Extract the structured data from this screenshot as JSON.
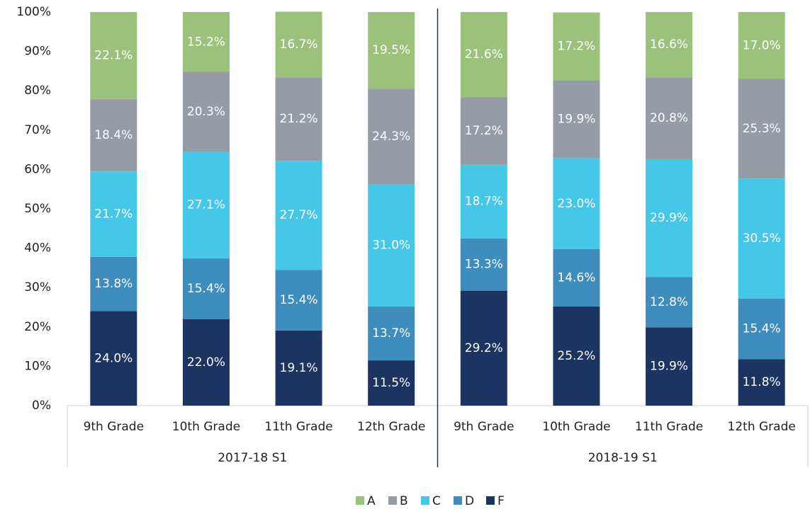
{
  "chart_data": {
    "type": "stacked_bar",
    "categories": [
      "9th Grade",
      "10th Grade",
      "11th Grade",
      "12th Grade",
      "9th Grade",
      "10th Grade",
      "11th Grade",
      "12th Grade"
    ],
    "groups": [
      "2017-18 S1",
      "2018-19 S1"
    ],
    "series": [
      {
        "name": "A",
        "color": "#9bc27a",
        "values": [
          22.1,
          15.2,
          16.7,
          19.5,
          21.6,
          17.2,
          16.6,
          17.0
        ],
        "value_labels": [
          "22.1%",
          "15.2%",
          "16.7%",
          "19.5%",
          "21.6%",
          "17.2%",
          "16.6%",
          "17.0%"
        ]
      },
      {
        "name": "B",
        "color": "#959ca6",
        "values": [
          18.4,
          20.3,
          21.2,
          24.3,
          17.2,
          19.9,
          20.8,
          25.3
        ],
        "value_labels": [
          "18.4%",
          "20.3%",
          "21.2%",
          "24.3%",
          "17.2%",
          "19.9%",
          "20.8%",
          "25.3%"
        ]
      },
      {
        "name": "C",
        "color": "#45c8e8",
        "values": [
          21.7,
          27.1,
          27.7,
          31.0,
          18.7,
          23.0,
          29.9,
          30.5
        ],
        "value_labels": [
          "21.7%",
          "27.1%",
          "27.7%",
          "31.0%",
          "18.7%",
          "23.0%",
          "29.9%",
          "30.5%"
        ]
      },
      {
        "name": "D",
        "color": "#3e8dbd",
        "values": [
          13.8,
          15.4,
          15.4,
          13.7,
          13.3,
          14.6,
          12.8,
          15.4
        ],
        "value_labels": [
          "13.8%",
          "15.4%",
          "15.4%",
          "13.7%",
          "13.3%",
          "14.6%",
          "12.8%",
          "15.4%"
        ]
      },
      {
        "name": "F",
        "color": "#1b3461",
        "values": [
          24.0,
          22.0,
          19.1,
          11.5,
          29.2,
          25.2,
          19.9,
          11.8
        ],
        "value_labels": [
          "24.0%",
          "22.0%",
          "19.1%",
          "11.5%",
          "29.2%",
          "25.2%",
          "19.9%",
          "11.8%"
        ]
      }
    ],
    "ylim": [
      0,
      100
    ],
    "yticks": [
      {
        "value": 0,
        "label": "0%"
      },
      {
        "value": 10,
        "label": "10%"
      },
      {
        "value": 20,
        "label": "20%"
      },
      {
        "value": 30,
        "label": "30%"
      },
      {
        "value": 40,
        "label": "40%"
      },
      {
        "value": 50,
        "label": "50%"
      },
      {
        "value": 60,
        "label": "60%"
      },
      {
        "value": 70,
        "label": "70%"
      },
      {
        "value": 80,
        "label": "80%"
      },
      {
        "value": 90,
        "label": "90%"
      },
      {
        "value": 100,
        "label": "100%"
      }
    ],
    "legend": "bottom"
  }
}
